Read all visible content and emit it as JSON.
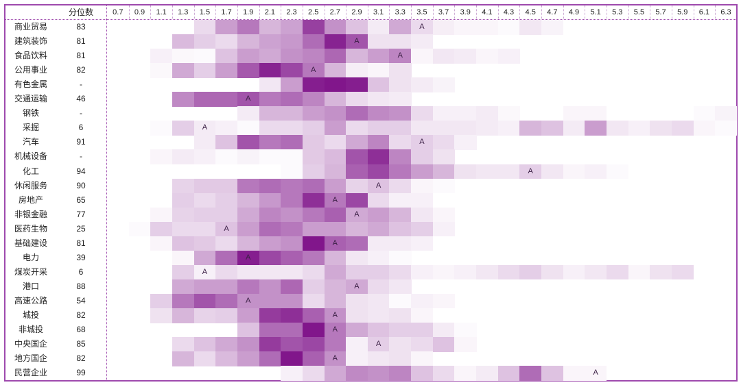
{
  "chart_data": {
    "type": "heatmap",
    "header": {
      "score_label": "分位数"
    },
    "columns": [
      "0.7",
      "0.9",
      "1.1",
      "1.3",
      "1.5",
      "1.7",
      "1.9",
      "2.1",
      "2.3",
      "2.5",
      "2.7",
      "2.9",
      "3.1",
      "3.3",
      "3.5",
      "3.7",
      "3.9",
      "4.1",
      "4.3",
      "4.5",
      "4.7",
      "4.9",
      "5.1",
      "5.3",
      "5.5",
      "5.7",
      "5.9",
      "6.1",
      "6.3"
    ],
    "color_scale": {
      "low": "#ffffff",
      "high": "#7a0a85"
    },
    "marker_text": "A",
    "rows": [
      {
        "label": "商业贸易",
        "score": "83",
        "values": [
          0,
          0,
          0,
          0,
          0.15,
          0.4,
          0.55,
          0.3,
          0.38,
          0.78,
          0.45,
          0.25,
          0.08,
          0.35,
          0.15,
          0.07,
          0.04,
          0.04,
          0.02,
          0.1,
          0.05,
          0,
          0,
          0,
          0,
          0,
          0,
          0,
          0
        ],
        "marker": 14
      },
      {
        "label": "建筑装饰",
        "score": "81",
        "values": [
          0,
          0,
          0,
          0.28,
          0.2,
          0.15,
          0.3,
          0.38,
          0.42,
          0.6,
          0.9,
          0.7,
          0.12,
          0.12,
          0.08,
          0,
          0,
          0,
          0,
          0,
          0,
          0,
          0,
          0,
          0,
          0,
          0,
          0,
          0
        ],
        "marker": 11
      },
      {
        "label": "食品饮料",
        "score": "81",
        "values": [
          0,
          0,
          0.06,
          0.03,
          0.02,
          0.25,
          0.4,
          0.35,
          0.45,
          0.5,
          0.62,
          0.3,
          0.4,
          0.5,
          0.04,
          0.1,
          0.08,
          0.04,
          0.06,
          0,
          0,
          0,
          0,
          0,
          0,
          0,
          0,
          0,
          0
        ],
        "marker": 13
      },
      {
        "label": "公用事业",
        "score": "82",
        "values": [
          0,
          0,
          0.03,
          0.35,
          0.2,
          0.4,
          0.68,
          0.9,
          0.75,
          0.55,
          0.3,
          0.07,
          0.04,
          0.12,
          0,
          0,
          0,
          0,
          0,
          0,
          0,
          0,
          0,
          0,
          0,
          0,
          0,
          0,
          0
        ],
        "marker": 9
      },
      {
        "label": "有色金属",
        "score": "-",
        "values": [
          0,
          0,
          0,
          0,
          0,
          0,
          0,
          0.1,
          0.4,
          0.92,
          0.95,
          0.92,
          0.25,
          0.12,
          0.08,
          0.05,
          0,
          0,
          0,
          0,
          0,
          0,
          0,
          0,
          0,
          0,
          0,
          0,
          0
        ],
        "marker": null
      },
      {
        "label": "交通运输",
        "score": "46",
        "values": [
          0,
          0,
          0,
          0.48,
          0.62,
          0.62,
          0.7,
          0.55,
          0.6,
          0.5,
          0.3,
          0.15,
          0.1,
          0.08,
          0,
          0,
          0,
          0,
          0,
          0,
          0,
          0,
          0,
          0,
          0,
          0,
          0,
          0,
          0
        ],
        "marker": 6
      },
      {
        "label": "钢铁",
        "score": "-",
        "values": [
          0,
          0,
          0,
          0,
          0,
          0,
          0.08,
          0.3,
          0.3,
          0.4,
          0.45,
          0.6,
          0.48,
          0.45,
          0.15,
          0.06,
          0.06,
          0.08,
          0.03,
          0,
          0,
          0.04,
          0.04,
          0,
          0,
          0,
          0,
          0.02,
          0.05
        ],
        "marker": null
      },
      {
        "label": "采掘",
        "score": "6",
        "values": [
          0,
          0,
          0.02,
          0.2,
          0.08,
          0.06,
          0.02,
          0.15,
          0.15,
          0.2,
          0.4,
          0.15,
          0.2,
          0.2,
          0.1,
          0.1,
          0.1,
          0.08,
          0.06,
          0.3,
          0.25,
          0.08,
          0.4,
          0.1,
          0.06,
          0.12,
          0.15,
          0.04,
          0.02
        ],
        "marker": 4
      },
      {
        "label": "汽车",
        "score": "91",
        "values": [
          0,
          0,
          0,
          0,
          0.08,
          0.25,
          0.7,
          0.55,
          0.6,
          0.22,
          0.15,
          0.35,
          0.5,
          0.15,
          0.2,
          0.15,
          0.06,
          0,
          0,
          0,
          0,
          0,
          0,
          0,
          0,
          0,
          0,
          0,
          0
        ],
        "marker": 14
      },
      {
        "label": "机械设备",
        "score": "-",
        "values": [
          0,
          0,
          0.04,
          0.08,
          0.06,
          0.02,
          0.05,
          0.02,
          0.02,
          0.22,
          0.28,
          0.7,
          0.85,
          0.5,
          0.2,
          0.12,
          0,
          0,
          0,
          0,
          0,
          0,
          0,
          0,
          0,
          0,
          0,
          0,
          0
        ],
        "marker": null
      },
      {
        "label": "化工",
        "score": "94",
        "values": [
          0,
          0,
          0,
          0,
          0,
          0,
          0,
          0,
          0.02,
          0.2,
          0.3,
          0.65,
          0.75,
          0.55,
          0.4,
          0.3,
          0.12,
          0.1,
          0.1,
          0.2,
          0.1,
          0.04,
          0.06,
          0.02,
          0,
          0,
          0,
          0,
          0
        ],
        "marker": 19
      },
      {
        "label": "休闲服务",
        "score": "90",
        "values": [
          0,
          0,
          0,
          0.18,
          0.22,
          0.22,
          0.55,
          0.6,
          0.55,
          0.6,
          0.4,
          0.18,
          0.25,
          0.15,
          0.04,
          0.02,
          0,
          0,
          0,
          0,
          0,
          0,
          0,
          0,
          0,
          0,
          0,
          0,
          0
        ],
        "marker": 12
      },
      {
        "label": "房地产",
        "score": "65",
        "values": [
          0,
          0,
          0,
          0.2,
          0.15,
          0.2,
          0.3,
          0.42,
          0.55,
          0.85,
          0.55,
          0.75,
          0.15,
          0.06,
          0.06,
          0,
          0,
          0,
          0,
          0,
          0,
          0,
          0,
          0,
          0,
          0,
          0,
          0,
          0
        ],
        "marker": 10
      },
      {
        "label": "非银金融",
        "score": "77",
        "values": [
          0,
          0,
          0.04,
          0.18,
          0.2,
          0.2,
          0.35,
          0.5,
          0.45,
          0.55,
          0.65,
          0.35,
          0.4,
          0.3,
          0.1,
          0.04,
          0,
          0,
          0,
          0,
          0,
          0,
          0,
          0,
          0,
          0,
          0,
          0,
          0
        ],
        "marker": 11
      },
      {
        "label": "医药生物",
        "score": "25",
        "values": [
          0,
          0.02,
          0.2,
          0.15,
          0.15,
          0.25,
          0.4,
          0.6,
          0.55,
          0.4,
          0.4,
          0.3,
          0.35,
          0.25,
          0.2,
          0.06,
          0,
          0,
          0,
          0,
          0,
          0,
          0,
          0,
          0,
          0,
          0,
          0,
          0
        ],
        "marker": 5
      },
      {
        "label": "基础建设",
        "score": "81",
        "values": [
          0,
          0,
          0.04,
          0.25,
          0.22,
          0.15,
          0.3,
          0.4,
          0.45,
          0.95,
          0.65,
          0.6,
          0.08,
          0.08,
          0.06,
          0,
          0,
          0,
          0,
          0,
          0,
          0,
          0,
          0,
          0,
          0,
          0,
          0,
          0
        ],
        "marker": 10
      },
      {
        "label": "电力",
        "score": "39",
        "values": [
          0,
          0,
          0,
          0.04,
          0.35,
          0.6,
          0.92,
          0.75,
          0.65,
          0.55,
          0.3,
          0.1,
          0.06,
          0.02,
          0,
          0,
          0,
          0,
          0,
          0,
          0,
          0,
          0,
          0,
          0,
          0,
          0,
          0,
          0
        ],
        "marker": 6
      },
      {
        "label": "煤炭开采",
        "score": "6",
        "values": [
          0,
          0,
          0,
          0.2,
          0.06,
          0.15,
          0.1,
          0.1,
          0.1,
          0.15,
          0.35,
          0.2,
          0.2,
          0.15,
          0.06,
          0.04,
          0.06,
          0.1,
          0.15,
          0.2,
          0.12,
          0.06,
          0.1,
          0.15,
          0.04,
          0.12,
          0.15,
          0,
          0
        ],
        "marker": 4
      },
      {
        "label": "港口",
        "score": "88",
        "values": [
          0,
          0,
          0,
          0.35,
          0.4,
          0.4,
          0.55,
          0.45,
          0.62,
          0.2,
          0.3,
          0.35,
          0.15,
          0.1,
          0,
          0,
          0,
          0,
          0,
          0,
          0,
          0,
          0,
          0,
          0,
          0,
          0,
          0,
          0
        ],
        "marker": 11
      },
      {
        "label": "高速公路",
        "score": "54",
        "values": [
          0,
          0,
          0.2,
          0.55,
          0.7,
          0.6,
          0.45,
          0.45,
          0.45,
          0.15,
          0.3,
          0.12,
          0.1,
          0.02,
          0.06,
          0.04,
          0,
          0,
          0,
          0,
          0,
          0,
          0,
          0,
          0,
          0,
          0,
          0,
          0
        ],
        "marker": 6
      },
      {
        "label": "城投",
        "score": "82",
        "values": [
          0,
          0,
          0.12,
          0.3,
          0.18,
          0.2,
          0.4,
          0.8,
          0.85,
          0.65,
          0.45,
          0.12,
          0.1,
          0.12,
          0.04,
          0,
          0,
          0,
          0,
          0,
          0,
          0,
          0,
          0,
          0,
          0,
          0,
          0,
          0
        ],
        "marker": 10
      },
      {
        "label": "非城投",
        "score": "68",
        "values": [
          0,
          0,
          0,
          0,
          0,
          0,
          0.25,
          0.6,
          0.6,
          0.95,
          0.55,
          0.35,
          0.25,
          0.2,
          0.2,
          0.08,
          0.02,
          0,
          0,
          0,
          0,
          0,
          0,
          0,
          0,
          0,
          0,
          0,
          0
        ],
        "marker": 10
      },
      {
        "label": "中央国企",
        "score": "85",
        "values": [
          0,
          0,
          0,
          0.15,
          0.25,
          0.35,
          0.45,
          0.8,
          0.7,
          0.75,
          0.55,
          0.06,
          0.2,
          0.12,
          0.15,
          0.25,
          0.04,
          0,
          0,
          0,
          0,
          0,
          0,
          0,
          0,
          0,
          0,
          0,
          0
        ],
        "marker": 12
      },
      {
        "label": "地方国企",
        "score": "82",
        "values": [
          0,
          0,
          0,
          0.3,
          0.15,
          0.28,
          0.4,
          0.6,
          0.95,
          0.65,
          0.45,
          0.06,
          0.1,
          0.12,
          0.04,
          0,
          0,
          0,
          0,
          0,
          0,
          0,
          0,
          0,
          0,
          0,
          0,
          0,
          0
        ],
        "marker": 10
      },
      {
        "label": "民营企业",
        "score": "99",
        "values": [
          0,
          0,
          0,
          0,
          0,
          0,
          0,
          0,
          0.06,
          0.15,
          0.35,
          0.48,
          0.45,
          0.5,
          0.25,
          0.15,
          0.04,
          0.08,
          0.25,
          0.6,
          0.25,
          0.04,
          0.04,
          0,
          0,
          0,
          0,
          0,
          0
        ],
        "marker": 22
      }
    ]
  }
}
